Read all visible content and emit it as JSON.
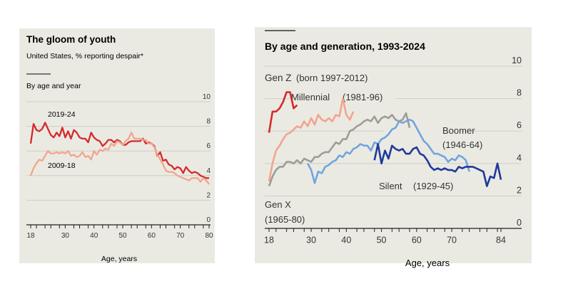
{
  "chart_data": [
    {
      "type": "line",
      "title": "The gloom of youth",
      "subtitle": "United States, % reporting despair*",
      "section_label": "By age and year",
      "xlabel": "Age, years",
      "ylabel": "",
      "xlim": [
        18,
        80
      ],
      "ylim": [
        0,
        10
      ],
      "xticks": [
        18,
        30,
        40,
        50,
        60,
        70,
        80
      ],
      "yticks": [
        0,
        2,
        4,
        6,
        8,
        10
      ],
      "grid": true,
      "series": [
        {
          "name": "2019-24",
          "color": "#d42a2c",
          "start_age": 18,
          "values": [
            6.6,
            8.2,
            7.7,
            7.6,
            7.8,
            8.3,
            7.8,
            7.3,
            7.1,
            7.5,
            7.2,
            7.9,
            7.1,
            7.6,
            7.0,
            7.7,
            7.5,
            7.1,
            7.0,
            7.0,
            6.7,
            7.5,
            7.1,
            6.9,
            6.8,
            6.4,
            6.6,
            6.9,
            6.9,
            6.7,
            6.9,
            6.8,
            6.5,
            6.5,
            6.7,
            6.8,
            6.8,
            6.8,
            6.8,
            7.0,
            6.6,
            6.7,
            6.6,
            6.4,
            5.6,
            5.9,
            5.2,
            5.3,
            4.9,
            4.8,
            4.5,
            4.7,
            4.6,
            4.2,
            4.7,
            4.4,
            4.2,
            4.3,
            4.2,
            4.0,
            3.9,
            3.8,
            3.8
          ]
        },
        {
          "name": "2009-18",
          "color": "#f1a58f",
          "start_age": 18,
          "values": [
            4.0,
            4.6,
            5.0,
            5.3,
            5.2,
            5.6,
            6.0,
            5.8,
            5.8,
            5.9,
            5.8,
            5.9,
            5.8,
            6.0,
            5.6,
            5.7,
            5.5,
            5.6,
            5.9,
            5.5,
            5.6,
            5.3,
            6.0,
            5.7,
            6.1,
            6.0,
            6.2,
            6.1,
            6.6,
            6.4,
            6.8,
            6.7,
            6.5,
            6.8,
            7.0,
            7.5,
            7.0,
            7.0,
            7.0,
            6.9,
            6.9,
            6.6,
            6.6,
            6.3,
            5.7,
            5.3,
            4.9,
            4.4,
            4.3,
            4.3,
            4.2,
            4.0,
            3.9,
            3.8,
            3.7,
            3.6,
            3.8,
            3.8,
            3.8,
            3.5,
            3.8,
            3.6,
            3.3
          ]
        }
      ]
    },
    {
      "type": "line",
      "title": "By age and generation, 1993-2024",
      "xlabel": "Age, years",
      "ylabel": "",
      "xlim": [
        18,
        84
      ],
      "ylim": [
        0,
        10
      ],
      "xticks": [
        18,
        30,
        40,
        50,
        60,
        70,
        84
      ],
      "yticks": [
        0,
        2,
        4,
        6,
        8,
        10
      ],
      "grid": true,
      "series": [
        {
          "name": "Gen Z",
          "label_line2": "(born 1997-2012)",
          "color": "#d42a2c",
          "start_age": 18,
          "values": [
            5.9,
            7.2,
            7.2,
            7.4,
            7.8,
            8.4,
            8.4,
            7.4,
            7.6
          ]
        },
        {
          "name": "Millennial",
          "label_line2": "(1981-96)",
          "color": "#f1a58f",
          "start_age": 18,
          "values": [
            2.9,
            4.0,
            4.8,
            5.1,
            5.5,
            5.8,
            5.9,
            6.1,
            6.3,
            6.2,
            6.6,
            6.3,
            6.8,
            6.4,
            7.0,
            6.7,
            6.6,
            6.8,
            6.6,
            7.0,
            6.9,
            8.0,
            7.0,
            6.7,
            7.2
          ]
        },
        {
          "name": "Gen X",
          "label_line2": "(1965-80)",
          "color": "#9d9d95",
          "start_age": 18,
          "values": [
            2.6,
            3.2,
            3.6,
            3.8,
            3.8,
            4.1,
            4.1,
            4.0,
            4.2,
            4.0,
            4.3,
            4.2,
            4.1,
            4.4,
            4.4,
            4.6,
            4.7,
            4.7,
            5.0,
            5.3,
            5.2,
            5.5,
            5.5,
            6.0,
            6.1,
            6.3,
            6.4,
            6.6,
            6.7,
            6.6,
            6.9,
            6.5,
            6.8,
            6.9,
            6.8,
            7.0,
            6.7,
            6.6,
            6.7,
            7.1,
            6.2
          ]
        },
        {
          "name": "Boomer",
          "label_line2": "(1946-64)",
          "color": "#6fa5df",
          "start_age": 29,
          "values": [
            4.0,
            3.6,
            2.8,
            3.5,
            3.4,
            3.8,
            3.9,
            4.1,
            4.2,
            4.5,
            4.4,
            4.7,
            4.6,
            4.9,
            5.0,
            5.2,
            5.1,
            5.1,
            4.8,
            5.3,
            5.2,
            5.5,
            5.6,
            5.8,
            6.1,
            6.2,
            6.6,
            6.5,
            6.6,
            6.7,
            6.6,
            6.2,
            5.8,
            5.4,
            5.2,
            4.9,
            4.6,
            4.6,
            4.5,
            4.4,
            4.1,
            4.3,
            4.2,
            4.5,
            4.4,
            4.2,
            3.5
          ]
        },
        {
          "name": "Silent",
          "label_line2": "(1929-45)",
          "color": "#1f3a9c",
          "start_age": 48,
          "values": [
            4.2,
            5.2,
            4.0,
            4.8,
            4.3,
            5.1,
            4.9,
            4.8,
            4.9,
            4.6,
            4.6,
            4.9,
            5.0,
            4.6,
            4.5,
            4.2,
            3.8,
            3.6,
            3.7,
            3.6,
            3.7,
            3.6,
            3.6,
            3.5,
            3.8,
            3.7,
            3.8,
            3.8,
            3.8,
            3.7,
            3.6,
            3.5,
            2.6,
            3.2,
            3.1,
            4.0,
            3.0
          ]
        }
      ]
    }
  ]
}
